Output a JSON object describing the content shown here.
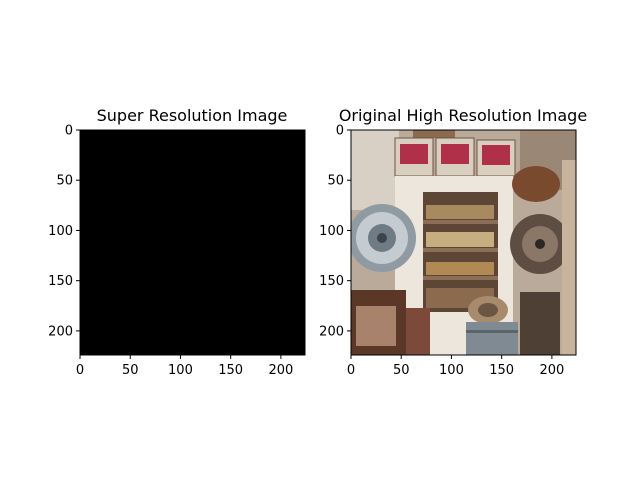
{
  "chart_data": [
    {
      "type": "image",
      "title": "Super Resolution Image",
      "content": "black",
      "fill_color": "#000000",
      "xlim": [
        0,
        224
      ],
      "ylim": [
        224,
        0
      ],
      "x_ticks": [
        0,
        50,
        100,
        150,
        200
      ],
      "y_ticks": [
        0,
        50,
        100,
        150,
        200
      ],
      "grid": false
    },
    {
      "type": "image",
      "title": "Original High Resolution Image",
      "content": "photo-antique-shop-shelves-windmills",
      "xlim": [
        0,
        224
      ],
      "ylim": [
        224,
        0
      ],
      "x_ticks": [
        0,
        50,
        100,
        150,
        200
      ],
      "y_ticks": [
        0,
        50,
        100,
        150,
        200
      ],
      "grid": false
    }
  ]
}
